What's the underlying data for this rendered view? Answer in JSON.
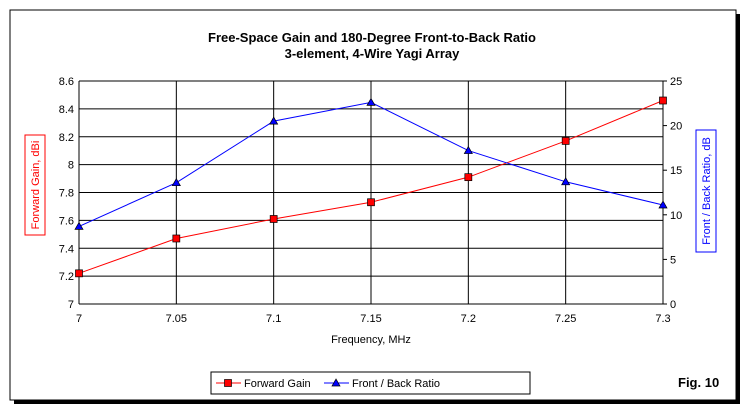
{
  "chart_data": {
    "type": "line",
    "title": "Free-Space Gain and 180-Degree Front-to-Back Ratio",
    "subtitle": "3-element, 4-Wire Yagi Array",
    "xlabel": "Frequency, MHz",
    "ylabel": "Forward Gain, dBi",
    "y2label": "Front / Back Ratio, dB",
    "x": [
      7,
      7.05,
      7.1,
      7.15,
      7.2,
      7.25,
      7.3
    ],
    "x_ticks": [
      "7",
      "7.05",
      "7.1",
      "7.15",
      "7.2",
      "7.25",
      "7.3"
    ],
    "xlim": [
      7,
      7.3
    ],
    "ylim": [
      7,
      8.6
    ],
    "y_ticks": [
      "7",
      "7.2",
      "7.4",
      "7.6",
      "7.8",
      "8",
      "8.2",
      "8.4",
      "8.6"
    ],
    "y2lim": [
      0,
      25
    ],
    "y2_ticks": [
      "0",
      "5",
      "10",
      "15",
      "20",
      "25"
    ],
    "grid": true,
    "legend_position": "bottom",
    "series": [
      {
        "name": "Forward Gain",
        "axis": "left",
        "color": "#ff0000",
        "marker": "square",
        "values": [
          7.22,
          7.47,
          7.61,
          7.73,
          7.91,
          8.17,
          8.46
        ]
      },
      {
        "name": "Front / Back Ratio",
        "axis": "right",
        "color": "#0000ff",
        "marker": "triangle",
        "values": [
          8.7,
          13.6,
          20.5,
          22.6,
          17.2,
          13.7,
          11.1
        ]
      }
    ],
    "annotation": "Fig. 10"
  }
}
